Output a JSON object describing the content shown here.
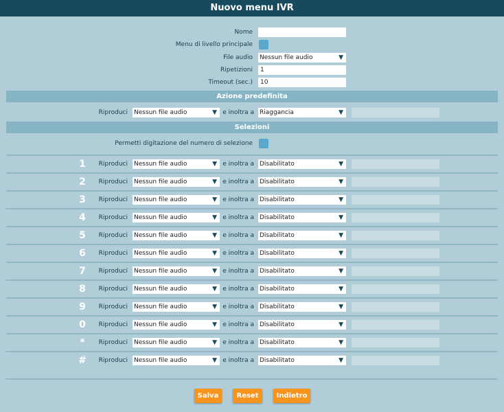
{
  "title": "Nuovo menu IVR",
  "form": {
    "nome_label": "Nome",
    "nome_value": "",
    "main_menu_label": "Menu di livello principale",
    "file_audio_label": "File audio",
    "file_audio_value": "Nessun file audio",
    "ripetizioni_label": "Ripetizioni",
    "ripetizioni_value": "1",
    "timeout_label": "Timeout (sec.)",
    "timeout_value": "10"
  },
  "default_action": {
    "section_title": "Azione predefinita",
    "play_label": "Riproduci",
    "play_value": "Nessun file audio",
    "forward_label": "e inoltra a",
    "forward_value": "Riaggancia"
  },
  "selections": {
    "section_title": "Selezioni",
    "allow_label": "Permetti digitazione del numero di selezione",
    "rows": [
      {
        "key": "1",
        "play_label": "Riproduci",
        "play_value": "Nessun file audio",
        "forward_label": "e inoltra a",
        "forward_value": "Disabilitato"
      },
      {
        "key": "2",
        "play_label": "Riproduci",
        "play_value": "Nessun file audio",
        "forward_label": "e inoltra a",
        "forward_value": "Disabilitato"
      },
      {
        "key": "3",
        "play_label": "Riproduci",
        "play_value": "Nessun file audio",
        "forward_label": "e inoltra a",
        "forward_value": "Disabilitato"
      },
      {
        "key": "4",
        "play_label": "Riproduci",
        "play_value": "Nessun file audio",
        "forward_label": "e inoltra a",
        "forward_value": "Disabilitato"
      },
      {
        "key": "5",
        "play_label": "Riproduci",
        "play_value": "Nessun file audio",
        "forward_label": "e inoltra a",
        "forward_value": "Disabilitato"
      },
      {
        "key": "6",
        "play_label": "Riproduci",
        "play_value": "Nessun file audio",
        "forward_label": "e inoltra a",
        "forward_value": "Disabilitato"
      },
      {
        "key": "7",
        "play_label": "Riproduci",
        "play_value": "Nessun file audio",
        "forward_label": "e inoltra a",
        "forward_value": "Disabilitato"
      },
      {
        "key": "8",
        "play_label": "Riproduci",
        "play_value": "Nessun file audio",
        "forward_label": "e inoltra a",
        "forward_value": "Disabilitato"
      },
      {
        "key": "9",
        "play_label": "Riproduci",
        "play_value": "Nessun file audio",
        "forward_label": "e inoltra a",
        "forward_value": "Disabilitato"
      },
      {
        "key": "0",
        "play_label": "Riproduci",
        "play_value": "Nessun file audio",
        "forward_label": "e inoltra a",
        "forward_value": "Disabilitato"
      },
      {
        "key": "*",
        "play_label": "Riproduci",
        "play_value": "Nessun file audio",
        "forward_label": "e inoltra a",
        "forward_value": "Disabilitato"
      },
      {
        "key": "#",
        "play_label": "Riproduci",
        "play_value": "Nessun file audio",
        "forward_label": "e inoltra a",
        "forward_value": "Disabilitato"
      }
    ]
  },
  "buttons": {
    "save": "Salva",
    "reset": "Reset",
    "back": "Indietro"
  },
  "icons": {
    "dropdown": "caret-down-icon"
  },
  "colors": {
    "header": "#174a5f",
    "accent": "#f7941d",
    "checkbox": "#5aa7cf"
  }
}
